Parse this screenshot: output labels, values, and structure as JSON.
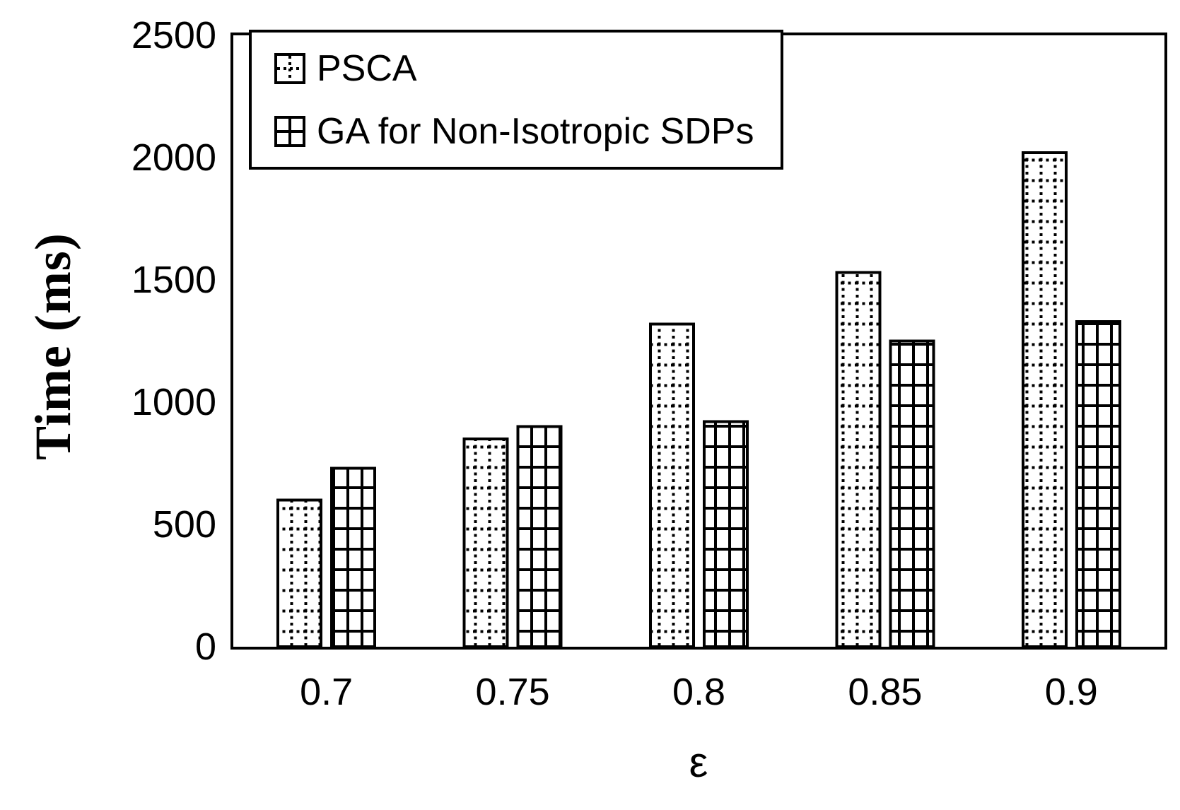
{
  "figure": {
    "background": "#ffffff",
    "ink": "#000000"
  },
  "chart_data": {
    "type": "bar",
    "categories": [
      "0.7",
      "0.75",
      "0.8",
      "0.85",
      "0.9"
    ],
    "series": [
      {
        "name": "PSCA",
        "pattern": "dotted-grid",
        "values": [
          600,
          850,
          1320,
          1530,
          2020
        ]
      },
      {
        "name": "GA for Non-Isotropic SDPs",
        "pattern": "solid-grid",
        "values": [
          730,
          900,
          920,
          1250,
          1330
        ]
      }
    ],
    "title": "",
    "xlabel": "ε",
    "ylabel": "Time (ms)",
    "ylim": [
      0,
      2500
    ],
    "yticks": [
      0,
      500,
      1000,
      1500,
      2000,
      2500
    ],
    "grid": false,
    "legend_position": "top-left",
    "bar_fill": "#ffffff",
    "bar_stroke": "#000000"
  }
}
